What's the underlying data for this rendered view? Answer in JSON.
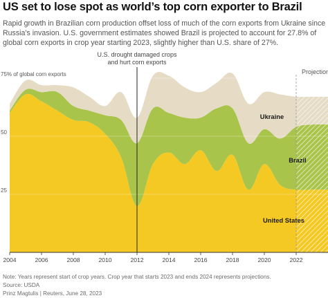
{
  "header": {
    "title": "US set to lose spot as world’s top corn exporter to Brazil",
    "subtitle": "Rapid growth in Brazilian corn production offset loss of much of the corn exports from Ukraine since Russia’s invasion. U.S. government estimates showed Brazil is projected to account for 27.8% of global corn exports in crop year starting 2023, slightly higher than U.S. share of 27%."
  },
  "footer": {
    "note": "Note: Years represent start of crop years. Crop year that starts 2023 and ends 2024 represents projections.",
    "source": "Source: USDA",
    "credit": "Prinz Magtulis | Reuters, June 28, 2023"
  },
  "colors": {
    "united_states": "#f5c923",
    "brazil": "#a9c44a",
    "ukraine": "#e6dcc5",
    "axis": "#333333",
    "grid": "#cfcfcf",
    "text": "#404040"
  },
  "chart_data": {
    "type": "area",
    "stacked": true,
    "ylabel": "75% of global corn exports",
    "ylim": [
      0,
      75
    ],
    "yticks": [
      {
        "value": 75,
        "label": "75% of global corn exports"
      },
      {
        "value": 50,
        "label": "50"
      },
      {
        "value": 25,
        "label": "25"
      }
    ],
    "xlim": [
      2004,
      2024
    ],
    "xticks": [
      {
        "value": 2004,
        "label": "2004"
      },
      {
        "value": 2006,
        "label": "2006"
      },
      {
        "value": 2008,
        "label": "2008"
      },
      {
        "value": 2010,
        "label": "2010"
      },
      {
        "value": 2012,
        "label": "2012"
      },
      {
        "value": 2014,
        "label": "2014"
      },
      {
        "value": 2016,
        "label": "2016"
      },
      {
        "value": 2018,
        "label": "2018"
      },
      {
        "value": 2020,
        "label": "2020"
      },
      {
        "value": 2022,
        "label": "2022"
      }
    ],
    "x": [
      2004,
      2005,
      2006,
      2007,
      2008,
      2009,
      2010,
      2011,
      2012,
      2013,
      2014,
      2015,
      2016,
      2017,
      2018,
      2019,
      2020,
      2021,
      2022,
      2023
    ],
    "series": [
      {
        "name": "United States",
        "color": "#f5c923",
        "values": [
          60,
          68,
          65,
          61,
          57,
          56,
          51,
          41,
          20,
          38,
          43,
          38,
          44,
          35,
          42,
          27,
          38,
          29,
          27,
          27
        ]
      },
      {
        "name": "Brazil",
        "color": "#a9c44a",
        "values": [
          1,
          2,
          4,
          8,
          6,
          5,
          8,
          16,
          27,
          24,
          17,
          20,
          14,
          27,
          20,
          20,
          15,
          20,
          27,
          28
        ]
      },
      {
        "name": "Ukraine",
        "color": "#e6dcc5",
        "values": [
          3,
          4,
          3,
          3,
          8,
          6,
          4,
          12,
          11,
          14,
          16,
          13,
          11,
          11,
          15,
          17,
          16,
          19,
          13,
          12
        ]
      }
    ],
    "annotations": [
      {
        "x": 2012,
        "text": "U.S. drought damaged crops and hurt corn exports",
        "lines": [
          "U.S. drought damaged crops",
          "and hurt corn exports"
        ]
      },
      {
        "x": 2022,
        "text": "Projection",
        "region": [
          2022,
          2023
        ]
      }
    ],
    "labels": [
      {
        "series": "Ukraine",
        "text": "Ukraine"
      },
      {
        "series": "Brazil",
        "text": "Brazil"
      },
      {
        "series": "United States",
        "text": "United States"
      }
    ],
    "grid": true,
    "legend": "inline labels"
  }
}
